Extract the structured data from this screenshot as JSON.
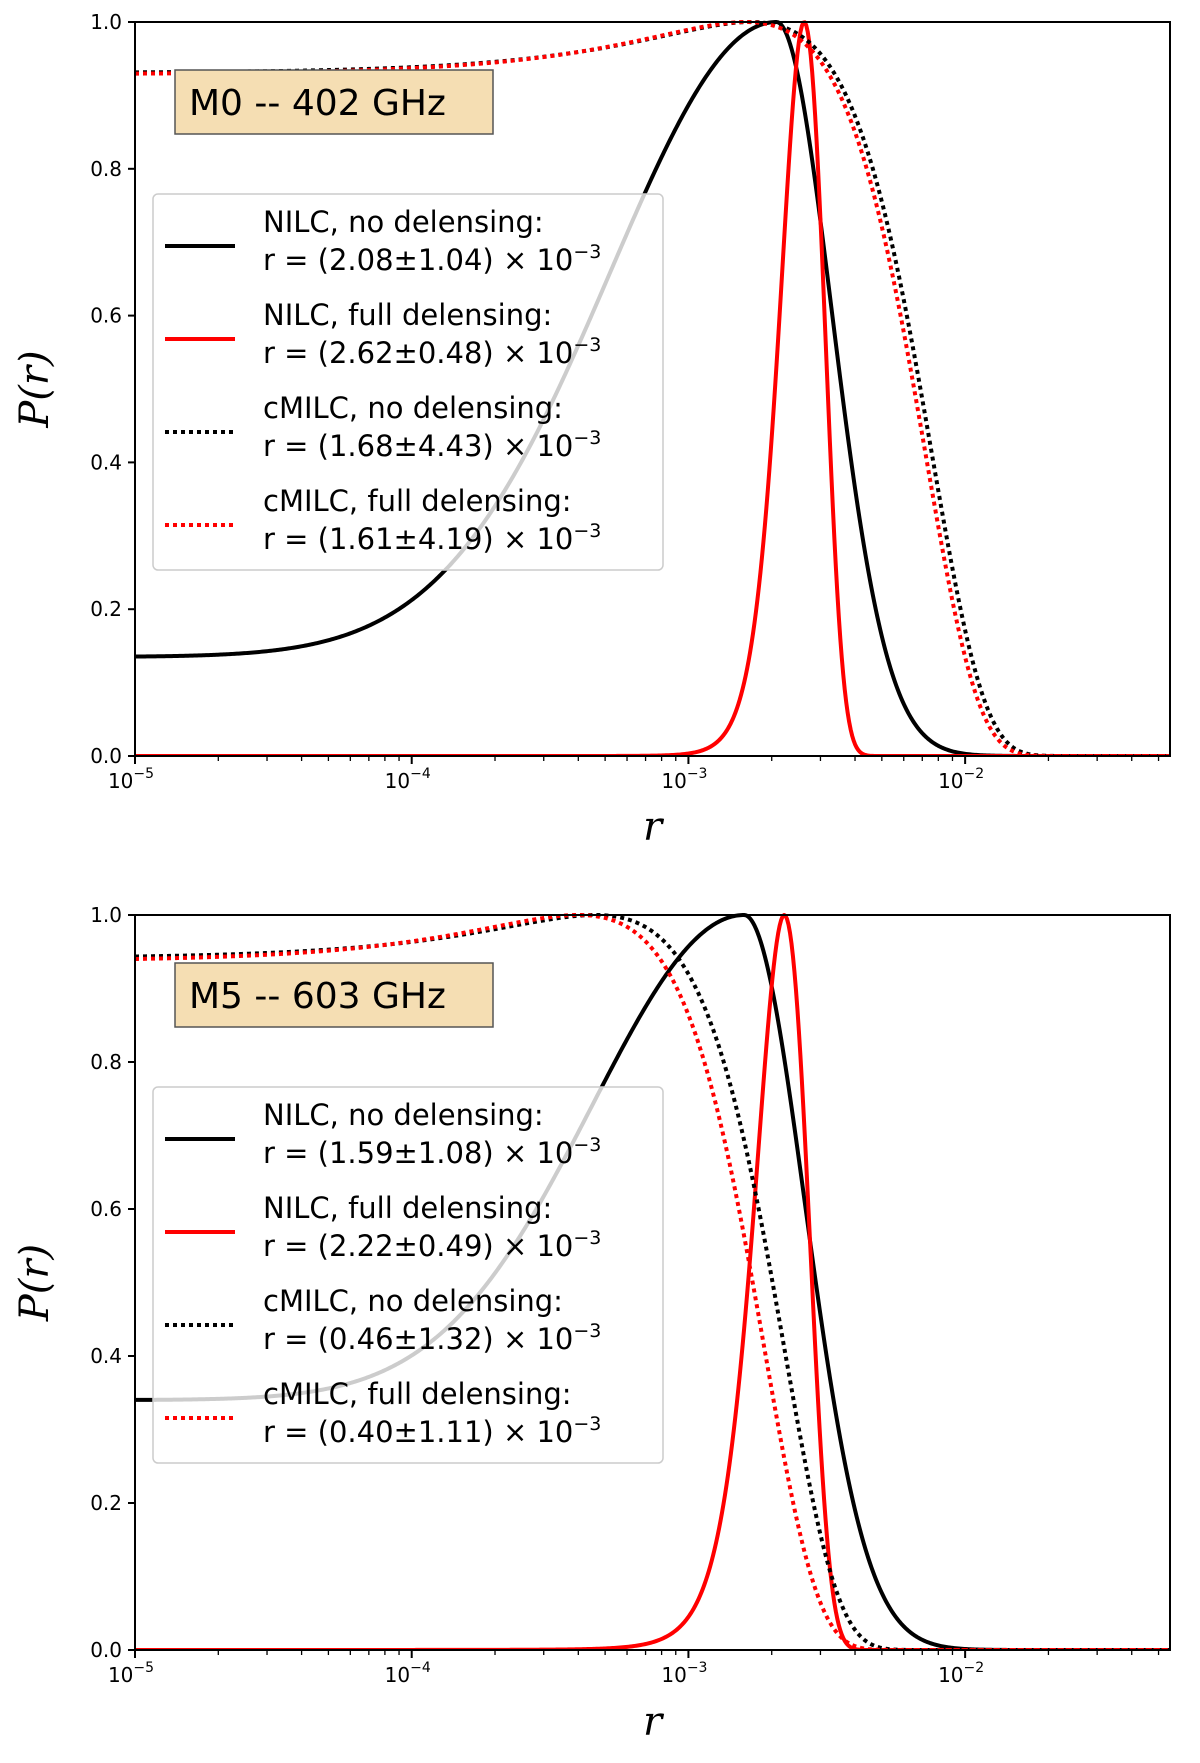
{
  "chart_data": [
    {
      "type": "line",
      "title": "M0 -- 402 GHz",
      "xlabel": "r",
      "ylabel": "P(r)",
      "xscale": "log",
      "xlim": [
        1e-05,
        0.055
      ],
      "ylim": [
        0.0,
        1.0
      ],
      "x_ticks": [
        {
          "value": 1e-05,
          "base": "10",
          "exp": "−5"
        },
        {
          "value": 0.0001,
          "base": "10",
          "exp": "−4"
        },
        {
          "value": 0.001,
          "base": "10",
          "exp": "−3"
        },
        {
          "value": 0.01,
          "base": "10",
          "exp": "−2"
        }
      ],
      "y_ticks": [
        "0.0",
        "0.2",
        "0.4",
        "0.6",
        "0.8",
        "1.0"
      ],
      "legend_position": "center-left",
      "series": [
        {
          "name": "NILC, no delensing:",
          "estimate": "r = (2.08±1.04) × 10",
          "exp": "−3",
          "color": "#000000",
          "style": "solid",
          "model": "gauss_log",
          "center": 0.00208,
          "sigma_log10": 0.2,
          "floor": 0.135,
          "floor_width": 0.6
        },
        {
          "name": "NILC, full delensing:",
          "estimate": "r = (2.62±0.48) × 10",
          "exp": "−3",
          "color": "#ff0000",
          "style": "solid",
          "model": "gauss_lin",
          "center": 0.00262,
          "sigma": 0.00048,
          "floor": 0.0
        },
        {
          "name": "cMILC, no delensing:",
          "estimate": "r = (1.68±4.43) × 10",
          "exp": "−3",
          "color": "#000000",
          "style": "dotted",
          "model": "gauss_lin",
          "center": 0.00168,
          "sigma": 0.00443,
          "floor": 0.0
        },
        {
          "name": "cMILC, full delensing:",
          "estimate": "r = (1.61±4.19) × 10",
          "exp": "−3",
          "color": "#ff0000",
          "style": "dotted",
          "model": "gauss_lin",
          "center": 0.00161,
          "sigma": 0.00419,
          "floor": 0.0
        }
      ]
    },
    {
      "type": "line",
      "title": "M5 -- 603 GHz",
      "xlabel": "r",
      "ylabel": "P(r)",
      "xscale": "log",
      "xlim": [
        1e-05,
        0.055
      ],
      "ylim": [
        0.0,
        1.0
      ],
      "x_ticks": [
        {
          "value": 1e-05,
          "base": "10",
          "exp": "−5"
        },
        {
          "value": 0.0001,
          "base": "10",
          "exp": "−4"
        },
        {
          "value": 0.001,
          "base": "10",
          "exp": "−3"
        },
        {
          "value": 0.01,
          "base": "10",
          "exp": "−2"
        }
      ],
      "y_ticks": [
        "0.0",
        "0.2",
        "0.4",
        "0.6",
        "0.8",
        "1.0"
      ],
      "legend_position": "center-left",
      "series": [
        {
          "name": "NILC, no delensing:",
          "estimate": "r = (1.59±1.08) × 10",
          "exp": "−3",
          "color": "#000000",
          "style": "solid",
          "model": "gauss_log",
          "center": 0.00159,
          "sigma_log10": 0.22,
          "floor": 0.34,
          "floor_width": 0.55
        },
        {
          "name": "NILC, full delensing:",
          "estimate": "r = (2.22±0.49) × 10",
          "exp": "−3",
          "color": "#ff0000",
          "style": "solid",
          "model": "gauss_lin",
          "center": 0.00222,
          "sigma": 0.00049,
          "floor": 0.0
        },
        {
          "name": "cMILC, no delensing:",
          "estimate": "r = (0.46±1.32) × 10",
          "exp": "−3",
          "color": "#000000",
          "style": "dotted",
          "model": "gauss_lin",
          "center": 0.00046,
          "sigma": 0.00132,
          "floor": 0.0
        },
        {
          "name": "cMILC, full delensing:",
          "estimate": "r = (0.40±1.11) × 10",
          "exp": "−3",
          "color": "#ff0000",
          "style": "dotted",
          "model": "gauss_lin",
          "center": 0.0004,
          "sigma": 0.00111,
          "floor": 0.0
        }
      ]
    }
  ]
}
